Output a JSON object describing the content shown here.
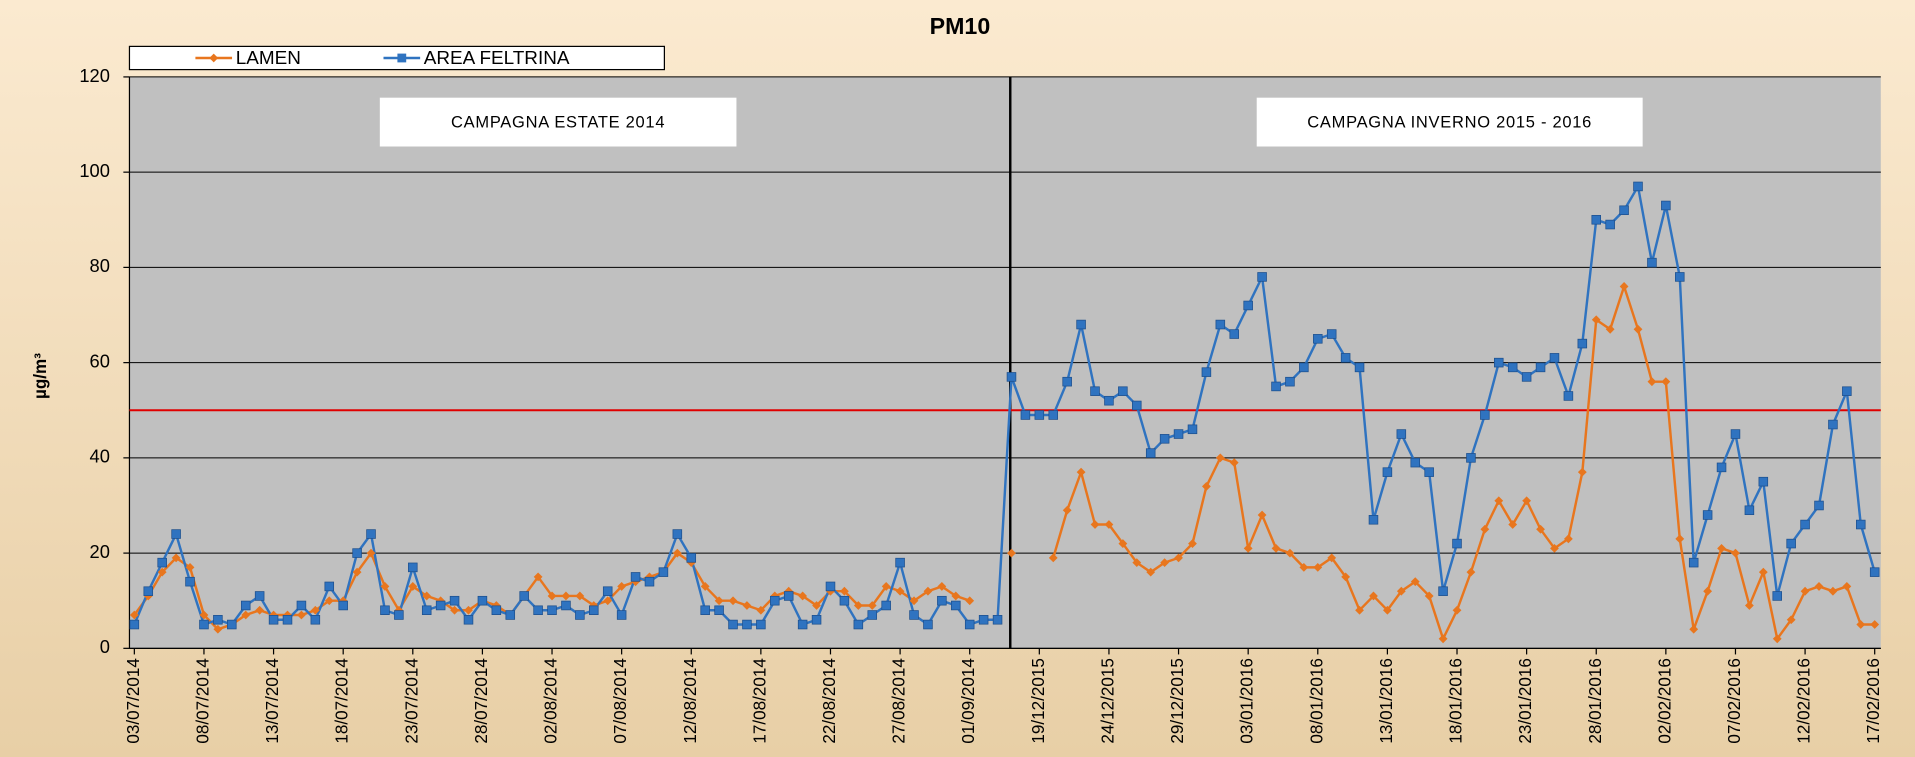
{
  "chart_data": {
    "type": "line",
    "title": "PM10",
    "ylabel": "µg/m³",
    "annotations": [
      "CAMPAGNA ESTATE 2014",
      "CAMPAGNA INVERNO 2015 - 2016"
    ],
    "reference_line": {
      "value": 50,
      "color": "#e00000"
    },
    "categories": [
      "03/07/2014",
      null,
      null,
      null,
      null,
      "08/07/2014",
      null,
      null,
      null,
      null,
      "13/07/2014",
      null,
      null,
      null,
      null,
      "18/07/2014",
      null,
      null,
      null,
      null,
      "23/07/2014",
      null,
      null,
      null,
      null,
      "28/07/2014",
      null,
      null,
      null,
      null,
      "02/08/2014",
      null,
      null,
      null,
      null,
      "07/08/2014",
      null,
      null,
      null,
      null,
      "12/08/2014",
      null,
      null,
      null,
      null,
      "17/08/2014",
      null,
      null,
      null,
      null,
      "22/08/2014",
      null,
      null,
      null,
      null,
      "27/08/2014",
      null,
      null,
      null,
      null,
      "01/09/2014",
      null,
      null,
      null,
      null,
      "19/12/2015",
      null,
      null,
      null,
      null,
      "24/12/2015",
      null,
      null,
      null,
      null,
      "29/12/2015",
      null,
      null,
      null,
      null,
      "03/01/2016",
      null,
      null,
      null,
      null,
      "08/01/2016",
      null,
      null,
      null,
      null,
      "13/01/2016",
      null,
      null,
      null,
      null,
      "18/01/2016",
      null,
      null,
      null,
      null,
      "23/01/2016",
      null,
      null,
      null,
      null,
      "28/01/2016",
      null,
      null,
      null,
      null,
      "02/02/2016",
      null,
      null,
      null,
      null,
      "07/02/2016",
      null,
      null,
      null,
      null,
      "12/02/2016",
      null,
      null,
      null,
      null,
      "17/02/2016"
    ],
    "series": [
      {
        "name": "LAMEN",
        "color": "#e8761e",
        "marker": "diamond",
        "values": [
          7,
          11,
          16,
          19,
          17,
          7,
          4,
          5,
          7,
          8,
          7,
          7,
          7,
          8,
          10,
          10,
          16,
          20,
          13,
          8,
          13,
          11,
          10,
          8,
          8,
          10,
          9,
          7,
          11,
          15,
          11,
          11,
          11,
          9,
          10,
          13,
          14,
          15,
          16,
          20,
          18,
          13,
          10,
          10,
          9,
          8,
          11,
          12,
          11,
          9,
          12,
          12,
          9,
          9,
          13,
          12,
          10,
          12,
          13,
          11,
          10,
          null,
          null,
          20,
          null,
          null,
          19,
          29,
          37,
          26,
          26,
          22,
          18,
          16,
          18,
          19,
          22,
          34,
          40,
          39,
          21,
          28,
          21,
          20,
          17,
          17,
          19,
          15,
          8,
          11,
          8,
          12,
          14,
          11,
          2,
          8,
          16,
          25,
          31,
          26,
          31,
          25,
          21,
          23,
          37,
          69,
          67,
          76,
          67,
          56,
          56,
          23,
          4,
          12,
          21,
          20,
          9,
          16,
          2,
          6,
          12,
          13,
          12,
          13,
          5,
          5
        ]
      },
      {
        "name": "AREA FELTRINA",
        "color": "#2f73c0",
        "marker": "square",
        "values": [
          5,
          12,
          18,
          24,
          14,
          5,
          6,
          5,
          9,
          11,
          6,
          6,
          9,
          6,
          13,
          9,
          20,
          24,
          8,
          7,
          17,
          8,
          9,
          10,
          6,
          10,
          8,
          7,
          11,
          8,
          8,
          9,
          7,
          8,
          12,
          7,
          15,
          14,
          16,
          24,
          19,
          8,
          8,
          5,
          5,
          5,
          10,
          11,
          5,
          6,
          13,
          10,
          5,
          7,
          9,
          18,
          7,
          5,
          10,
          9,
          5,
          6,
          6,
          57,
          49,
          49,
          49,
          56,
          68,
          54,
          52,
          54,
          51,
          41,
          44,
          45,
          46,
          58,
          68,
          66,
          72,
          78,
          55,
          56,
          59,
          65,
          66,
          61,
          59,
          27,
          37,
          45,
          39,
          37,
          12,
          22,
          40,
          49,
          60,
          59,
          57,
          59,
          61,
          53,
          64,
          90,
          89,
          92,
          97,
          81,
          93,
          78,
          18,
          28,
          38,
          45,
          29,
          35,
          11,
          22,
          26,
          30,
          47,
          54,
          26,
          16
        ]
      }
    ],
    "ylim": [
      0,
      120
    ],
    "yticks": [
      0,
      20,
      40,
      60,
      80,
      100,
      120
    ],
    "grid": true,
    "legend": "top-left"
  }
}
